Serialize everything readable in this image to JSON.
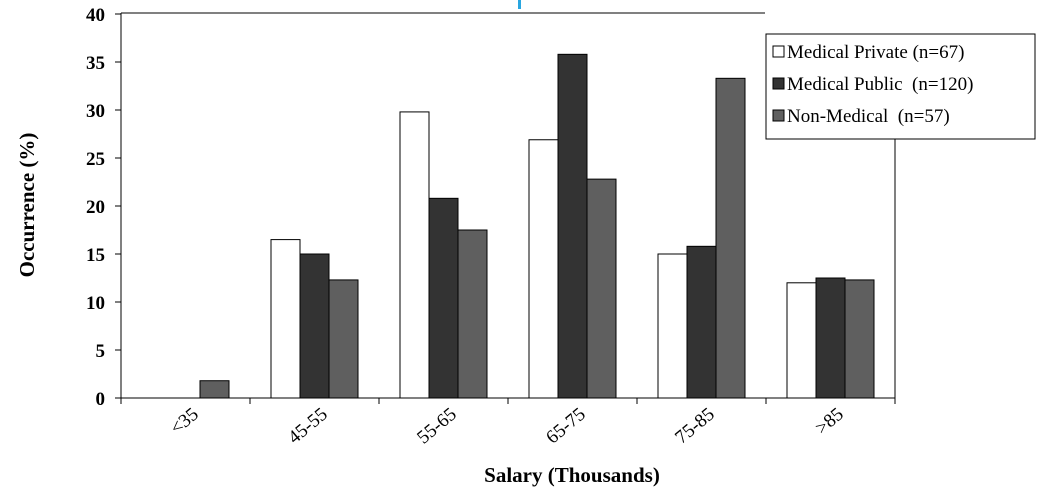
{
  "chart_data": {
    "type": "bar",
    "title": "",
    "xlabel": "Salary (Thousands)",
    "ylabel": "Occurrence (%)",
    "ylim": [
      0,
      40
    ],
    "yticks": [
      "0",
      "5",
      "10",
      "15",
      "20",
      "25",
      "30",
      "35",
      "40"
    ],
    "categories": [
      "<35",
      "45-55",
      "55-65",
      "65-75",
      "75-85",
      ">85"
    ],
    "series": [
      {
        "name": "Medical Private (n=67)",
        "color": "#ffffff",
        "values": [
          0,
          16.5,
          29.8,
          26.9,
          15.0,
          12.0
        ]
      },
      {
        "name": "Medical Public  (n=120)",
        "color": "#333333",
        "values": [
          0,
          15.0,
          20.8,
          35.8,
          15.8,
          12.5
        ]
      },
      {
        "name": "Non-Medical  (n=57)",
        "color": "#5f5f5f",
        "values": [
          1.8,
          12.3,
          17.5,
          22.8,
          33.3,
          12.3
        ]
      }
    ],
    "grid": false,
    "legend": "top-right"
  }
}
